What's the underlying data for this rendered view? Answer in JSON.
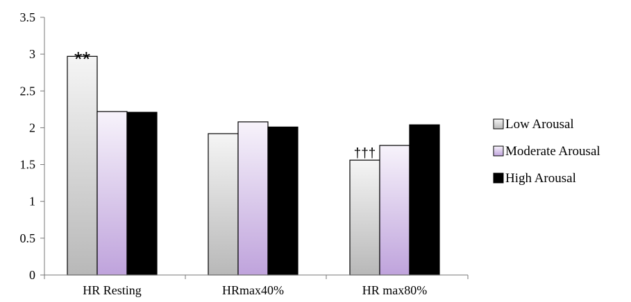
{
  "chart_data": {
    "type": "bar",
    "categories": [
      "HR Resting",
      "HRmax40%",
      "HR max80%"
    ],
    "series": [
      {
        "name": "Low Arousal",
        "values": [
          2.97,
          1.92,
          1.56
        ]
      },
      {
        "name": "Moderate Arousal",
        "values": [
          2.22,
          2.08,
          1.76
        ]
      },
      {
        "name": "High Arousal",
        "values": [
          2.21,
          2.01,
          2.04
        ]
      }
    ],
    "ylim": [
      0,
      3.5
    ],
    "yticks": [
      "0",
      "0.5",
      "1",
      "1.5",
      "2",
      "2.5",
      "3",
      "3.5"
    ],
    "grid": false,
    "legend_position": "right",
    "annotations": [
      {
        "text": "**",
        "category": "HR Resting",
        "series": "Low Arousal"
      },
      {
        "text": "†††",
        "category": "HR max80%",
        "series": "Low Arousal"
      }
    ],
    "colors": {
      "Low Arousal": {
        "top": "#f5f5f5",
        "bottom": "#b8b8b8"
      },
      "Moderate Arousal": {
        "top": "#f7f3fb",
        "bottom": "#bfa3dc"
      },
      "High Arousal": {
        "top": "#000000",
        "bottom": "#000000"
      }
    }
  }
}
